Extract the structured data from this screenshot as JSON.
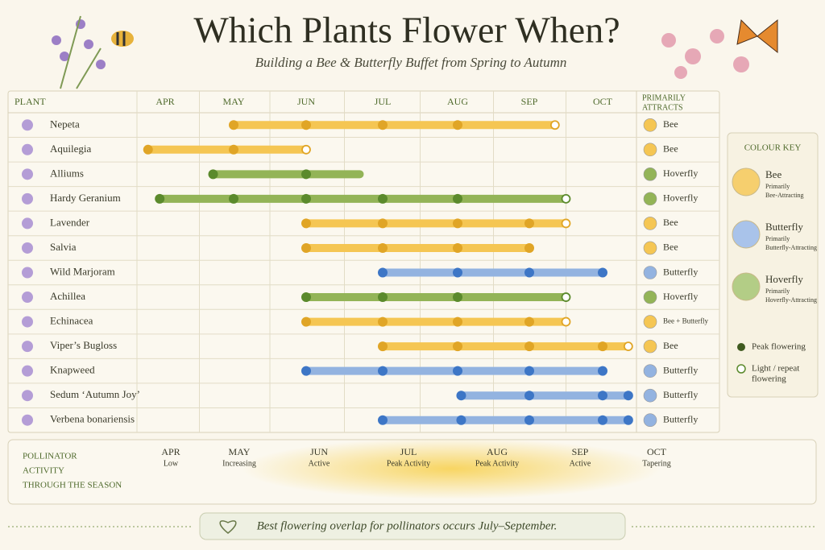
{
  "header": {
    "title": "Which Plants Flower When?",
    "subtitle": "Building a Bee & Butterfly Buffet from Spring to Autumn"
  },
  "table": {
    "plant_header": "PLANT",
    "attracts_header": [
      "PRIMARILY",
      "ATTRACTS"
    ],
    "months": [
      "APR",
      "MAY",
      "JUN",
      "JUL",
      "AUG",
      "SEP",
      "OCT"
    ],
    "plants": [
      {
        "name": "Nepeta",
        "attracts": "Bee",
        "color": "#f5c653",
        "dot_color": "#e0a526",
        "start": 1,
        "end": 5.35,
        "peaks": [
          1,
          2,
          3,
          4
        ],
        "light": [
          5.35
        ]
      },
      {
        "name": "Aquilegia",
        "attracts": "Bee",
        "color": "#f5c653",
        "dot_color": "#e0a526",
        "start": -0.25,
        "end": 2,
        "peaks": [
          -0.25,
          1
        ],
        "light": [
          2
        ]
      },
      {
        "name": "Alliums",
        "attracts": "Hoverfly",
        "color": "#93b457",
        "dot_color": "#5b8a2c",
        "start": 0.7,
        "end": 2.7,
        "peaks": [
          0.7,
          2
        ],
        "light": []
      },
      {
        "name": "Hardy Geranium",
        "attracts": "Hoverfly",
        "color": "#93b457",
        "dot_color": "#5b8a2c",
        "start": -0.08,
        "end": 5.5,
        "peaks": [
          -0.08,
          1,
          2,
          3,
          4
        ],
        "light": [
          5.5
        ]
      },
      {
        "name": "Lavender",
        "attracts": "Bee",
        "color": "#f5c653",
        "dot_color": "#e0a526",
        "start": 2,
        "end": 5.5,
        "peaks": [
          2,
          3,
          4,
          5
        ],
        "light": [
          5.5
        ]
      },
      {
        "name": "Salvia",
        "attracts": "Bee",
        "color": "#f5c653",
        "dot_color": "#e0a526",
        "start": 2,
        "end": 5,
        "peaks": [
          2,
          3,
          4,
          5
        ],
        "light": []
      },
      {
        "name": "Wild Marjoram",
        "attracts": "Butterfly",
        "color": "#93b3e0",
        "dot_color": "#3d76c6",
        "start": 3,
        "end": 6,
        "peaks": [
          3,
          4,
          5,
          6
        ],
        "light": []
      },
      {
        "name": "Achillea",
        "attracts": "Hoverfly",
        "color": "#93b457",
        "dot_color": "#5b8a2c",
        "start": 2,
        "end": 5.5,
        "peaks": [
          2,
          3,
          4
        ],
        "light": [
          5.5
        ]
      },
      {
        "name": "Echinacea",
        "attracts": "Bee + Butterfly",
        "color": "#f5c653",
        "dot_color": "#e0a526",
        "start": 2,
        "end": 5.5,
        "peaks": [
          2,
          3,
          4,
          5
        ],
        "light": [
          5.5
        ]
      },
      {
        "name": "Viper’s Bugloss",
        "attracts": "Bee",
        "color": "#f5c653",
        "dot_color": "#e0a526",
        "start": 3,
        "end": 6.35,
        "peaks": [
          3,
          4,
          5,
          6
        ],
        "light": [
          6.35
        ]
      },
      {
        "name": "Knapweed",
        "attracts": "Butterfly",
        "color": "#93b3e0",
        "dot_color": "#3d76c6",
        "start": 2,
        "end": 6,
        "peaks": [
          2,
          3,
          4,
          5,
          6
        ],
        "light": []
      },
      {
        "name": "Sedum ‘Autumn Joy’",
        "attracts": "Butterfly",
        "color": "#93b3e0",
        "dot_color": "#3d76c6",
        "start": 4.05,
        "end": 6.35,
        "peaks": [
          4.05,
          5,
          6,
          6.35
        ],
        "light": []
      },
      {
        "name": "Verbena bonariensis",
        "attracts": "Butterfly",
        "color": "#93b3e0",
        "dot_color": "#3d76c6",
        "start": 3,
        "end": 6.35,
        "peaks": [
          3,
          4.05,
          5,
          6,
          6.35
        ],
        "light": []
      }
    ]
  },
  "key": {
    "title": "COLOUR KEY",
    "groups": [
      {
        "name": "Bee",
        "desc": [
          "Primarily",
          "Bee-Attracting"
        ],
        "color": "#f6cf6e"
      },
      {
        "name": "Butterfly",
        "desc": [
          "Primarily",
          "Butterfly-Attracting"
        ],
        "color": "#a9c3ea"
      },
      {
        "name": "Hoverfly",
        "desc": [
          "Primarily",
          "Hoverfly-Attracting"
        ],
        "color": "#b3cd86"
      }
    ],
    "peak": "Peak flowering",
    "light": [
      "Light / repeat",
      "flowering"
    ]
  },
  "activity": {
    "title": [
      "POLLINATOR",
      "ACTIVITY",
      "THROUGH THE SEASON"
    ],
    "months": [
      {
        "month": "APR",
        "level": "Low"
      },
      {
        "month": "MAY",
        "level": "Increasing"
      },
      {
        "month": "JUN",
        "level": "Active"
      },
      {
        "month": "JUL",
        "level": "Peak Activity"
      },
      {
        "month": "AUG",
        "level": "Peak Activity"
      },
      {
        "month": "SEP",
        "level": "Active"
      },
      {
        "month": "OCT",
        "level": "Tapering"
      }
    ]
  },
  "note": "Best flowering overlap for pollinators occurs July–September."
}
